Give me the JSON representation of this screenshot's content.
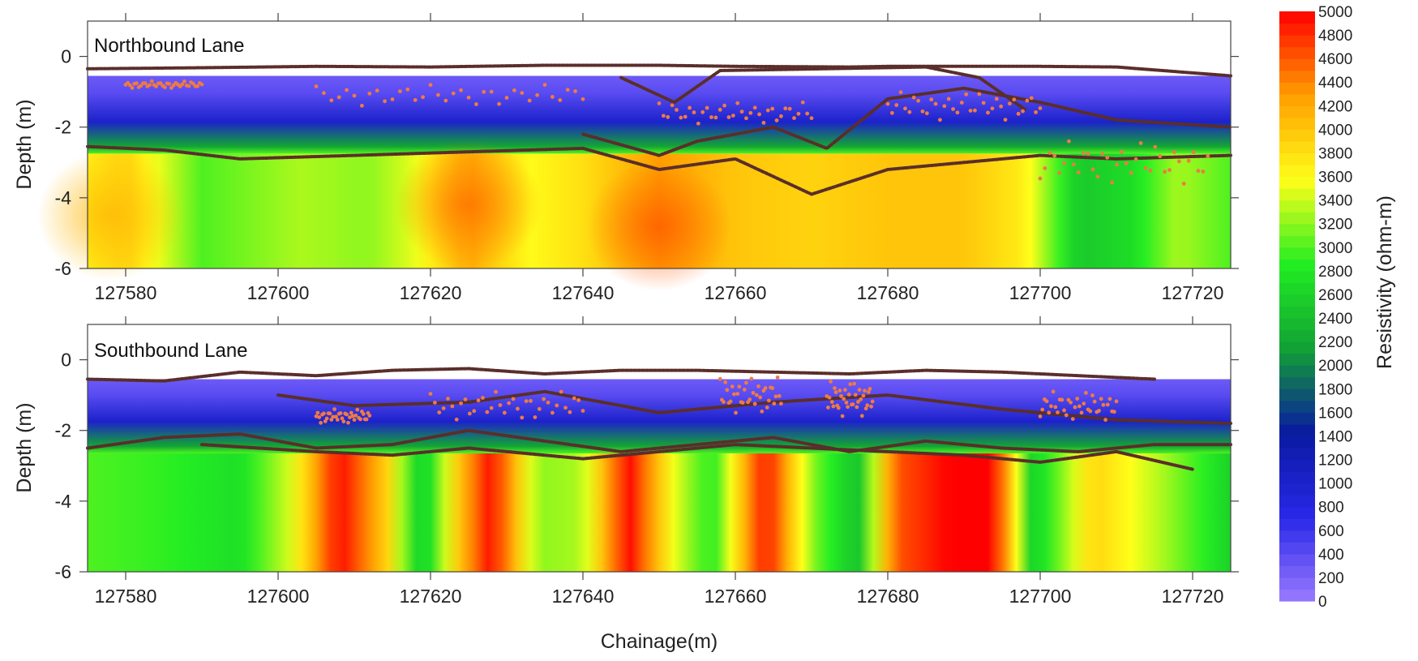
{
  "chart_data": {
    "type": "heatmap",
    "xlabel": "Chainage(m)",
    "ylabel": "Depth (m)",
    "xlim": [
      127575,
      127725
    ],
    "ylim": [
      -6,
      1
    ],
    "xticks": [
      127580,
      127600,
      127620,
      127640,
      127660,
      127680,
      127700,
      127720
    ],
    "yticks": [
      0,
      -2,
      -4,
      -6
    ],
    "colorbar": {
      "label": "Resistivity (ohm-m)",
      "range": [
        0,
        5000
      ],
      "ticks": [
        0,
        200,
        400,
        600,
        800,
        1000,
        1200,
        1400,
        1600,
        1800,
        2000,
        2200,
        2400,
        2600,
        2800,
        3000,
        3200,
        3400,
        3600,
        3800,
        4000,
        4200,
        4400,
        4600,
        4800,
        5000
      ],
      "colors": [
        "#9a7aff",
        "#2828e8",
        "#0a1aa0",
        "#12a035",
        "#22ee22",
        "#ffff1a",
        "#ff9f00",
        "#ff0000"
      ]
    },
    "panels": [
      {
        "title": "Northbound Lane",
        "data_top_depth": -0.55,
        "layers": [
          {
            "from_depth": -0.55,
            "to_depth": -1.5,
            "resistivity": 400
          },
          {
            "from_depth": -1.5,
            "to_depth": -2.2,
            "resistivity": 1000
          },
          {
            "from_depth": -2.2,
            "to_depth": -2.9,
            "resistivity": 2200
          }
        ],
        "deep_resistivity": [
          {
            "chainage": 127575,
            "value": 3700
          },
          {
            "chainage": 127580,
            "value": 3900
          },
          {
            "chainage": 127590,
            "value": 3000
          },
          {
            "chainage": 127603,
            "value": 3300
          },
          {
            "chainage": 127612,
            "value": 3200
          },
          {
            "chainage": 127618,
            "value": 3500
          },
          {
            "chainage": 127625,
            "value": 4200
          },
          {
            "chainage": 127633,
            "value": 3600
          },
          {
            "chainage": 127640,
            "value": 3800
          },
          {
            "chainage": 127650,
            "value": 4300
          },
          {
            "chainage": 127660,
            "value": 4000
          },
          {
            "chainage": 127670,
            "value": 3900
          },
          {
            "chainage": 127680,
            "value": 4000
          },
          {
            "chainage": 127690,
            "value": 4000
          },
          {
            "chainage": 127698,
            "value": 3700
          },
          {
            "chainage": 127705,
            "value": 2500
          },
          {
            "chainage": 127712,
            "value": 2700
          },
          {
            "chainage": 127718,
            "value": 3300
          },
          {
            "chainage": 127725,
            "value": 3000
          }
        ],
        "hot_spots": [
          {
            "chainage": 127625,
            "depth": -4.2,
            "value": 4500
          },
          {
            "chainage": 127650,
            "depth": -4.8,
            "value": 4600
          },
          {
            "chainage": 127578,
            "depth": -4.5,
            "value": 4100
          }
        ],
        "reflector_lines": [
          {
            "x": [
              127575,
              127590,
              127605,
              127620,
              127635,
              127640,
              127650,
              127660,
              127675,
              127680,
              127700,
              127710,
              127725
            ],
            "y": [
              -0.35,
              -0.32,
              -0.28,
              -0.3,
              -0.25,
              -0.25,
              -0.25,
              -0.28,
              -0.3,
              -0.28,
              -0.28,
              -0.3,
              -0.55
            ]
          },
          {
            "x": [
              127575,
              127585,
              127595,
              127610,
              127625,
              127640,
              127650,
              127660,
              127670,
              127680,
              127690,
              127700,
              127710,
              127725
            ],
            "y": [
              -2.55,
              -2.65,
              -2.9,
              -2.8,
              -2.7,
              -2.6,
              -3.2,
              -2.9,
              -3.9,
              -3.2,
              -3.0,
              -2.8,
              -2.9,
              -2.8
            ]
          },
          {
            "x": [
              127640,
              127650,
              127655,
              127665,
              127672,
              127680,
              127690,
              127700,
              127710,
              127725
            ],
            "y": [
              -2.2,
              -2.8,
              -2.4,
              -2.0,
              -2.6,
              -1.2,
              -0.9,
              -1.3,
              -1.8,
              -2.0
            ]
          },
          {
            "x": [
              127645,
              127652,
              127658,
              127685,
              127692,
              127698
            ],
            "y": [
              -0.6,
              -1.3,
              -0.4,
              -0.3,
              -0.6,
              -1.5
            ]
          }
        ],
        "scatter_clusters": [
          {
            "x0": 127580,
            "x1": 127590,
            "y": -0.8,
            "amp": 0.1
          },
          {
            "x0": 127605,
            "x1": 127640,
            "y": -1.1,
            "amp": 0.3
          },
          {
            "x0": 127650,
            "x1": 127670,
            "y": -1.6,
            "amp": 0.3
          },
          {
            "x0": 127680,
            "x1": 127700,
            "y": -1.4,
            "amp": 0.4
          },
          {
            "x0": 127700,
            "x1": 127722,
            "y": -3.0,
            "amp": 0.6
          }
        ]
      },
      {
        "title": "Southbound Lane",
        "data_top_depth": -0.55,
        "layers": [
          {
            "from_depth": -0.55,
            "to_depth": -1.4,
            "resistivity": 400
          },
          {
            "from_depth": -1.4,
            "to_depth": -2.1,
            "resistivity": 1000
          },
          {
            "from_depth": -2.1,
            "to_depth": -2.8,
            "resistivity": 2200
          }
        ],
        "deep_resistivity": [
          {
            "chainage": 127575,
            "value": 3000
          },
          {
            "chainage": 127585,
            "value": 2900
          },
          {
            "chainage": 127595,
            "value": 2700
          },
          {
            "chainage": 127602,
            "value": 3500
          },
          {
            "chainage": 127608,
            "value": 5000
          },
          {
            "chainage": 127614,
            "value": 4000
          },
          {
            "chainage": 127619,
            "value": 2400
          },
          {
            "chainage": 127623,
            "value": 3800
          },
          {
            "chainage": 127628,
            "value": 5000
          },
          {
            "chainage": 127634,
            "value": 3200
          },
          {
            "chainage": 127640,
            "value": 3300
          },
          {
            "chainage": 127646,
            "value": 5000
          },
          {
            "chainage": 127652,
            "value": 3500
          },
          {
            "chainage": 127657,
            "value": 2800
          },
          {
            "chainage": 127664,
            "value": 5000
          },
          {
            "chainage": 127670,
            "value": 3200
          },
          {
            "chainage": 127676,
            "value": 2400
          },
          {
            "chainage": 127681,
            "value": 4600
          },
          {
            "chainage": 127688,
            "value": 5000
          },
          {
            "chainage": 127694,
            "value": 5000
          },
          {
            "chainage": 127699,
            "value": 2500
          },
          {
            "chainage": 127707,
            "value": 3900
          },
          {
            "chainage": 127716,
            "value": 3300
          },
          {
            "chainage": 127725,
            "value": 2600
          }
        ],
        "reflector_lines": [
          {
            "x": [
              127575,
              127585,
              127595,
              127605,
              127615,
              127625,
              127635,
              127645,
              127655,
              127665,
              127675,
              127685,
              127695,
              127705,
              127715
            ],
            "y": [
              -0.55,
              -0.6,
              -0.35,
              -0.45,
              -0.3,
              -0.25,
              -0.4,
              -0.3,
              -0.3,
              -0.35,
              -0.4,
              -0.3,
              -0.35,
              -0.45,
              -0.55
            ]
          },
          {
            "x": [
              127575,
              127585,
              127595,
              127605,
              127615,
              127625,
              127635,
              127645,
              127655,
              127665,
              127675,
              127685,
              127695,
              127705,
              127715,
              127725
            ],
            "y": [
              -2.5,
              -2.2,
              -2.1,
              -2.5,
              -2.4,
              -2.0,
              -2.3,
              -2.6,
              -2.4,
              -2.2,
              -2.6,
              -2.3,
              -2.5,
              -2.6,
              -2.4,
              -2.4
            ]
          },
          {
            "x": [
              127590,
              127605,
              127615,
              127625,
              127640,
              127650,
              127660,
              127670,
              127680,
              127690,
              127700,
              127710,
              127720
            ],
            "y": [
              -2.4,
              -2.6,
              -2.7,
              -2.5,
              -2.8,
              -2.6,
              -2.4,
              -2.5,
              -2.6,
              -2.7,
              -2.9,
              -2.6,
              -3.1
            ]
          },
          {
            "x": [
              127600,
              127610,
              127625,
              127635,
              127650,
              127665,
              127680,
              127695,
              127710,
              127725
            ],
            "y": [
              -1.0,
              -1.3,
              -1.2,
              -0.9,
              -1.5,
              -1.2,
              -1.0,
              -1.4,
              -1.7,
              -1.8
            ]
          }
        ],
        "scatter_clusters": [
          {
            "x0": 127605,
            "x1": 127612,
            "y": -1.6,
            "amp": 0.2
          },
          {
            "x0": 127620,
            "x1": 127640,
            "y": -1.3,
            "amp": 0.4
          },
          {
            "x0": 127658,
            "x1": 127666,
            "y": -1.0,
            "amp": 0.5
          },
          {
            "x0": 127672,
            "x1": 127678,
            "y": -1.1,
            "amp": 0.5
          },
          {
            "x0": 127700,
            "x1": 127710,
            "y": -1.3,
            "amp": 0.4
          }
        ]
      }
    ]
  }
}
